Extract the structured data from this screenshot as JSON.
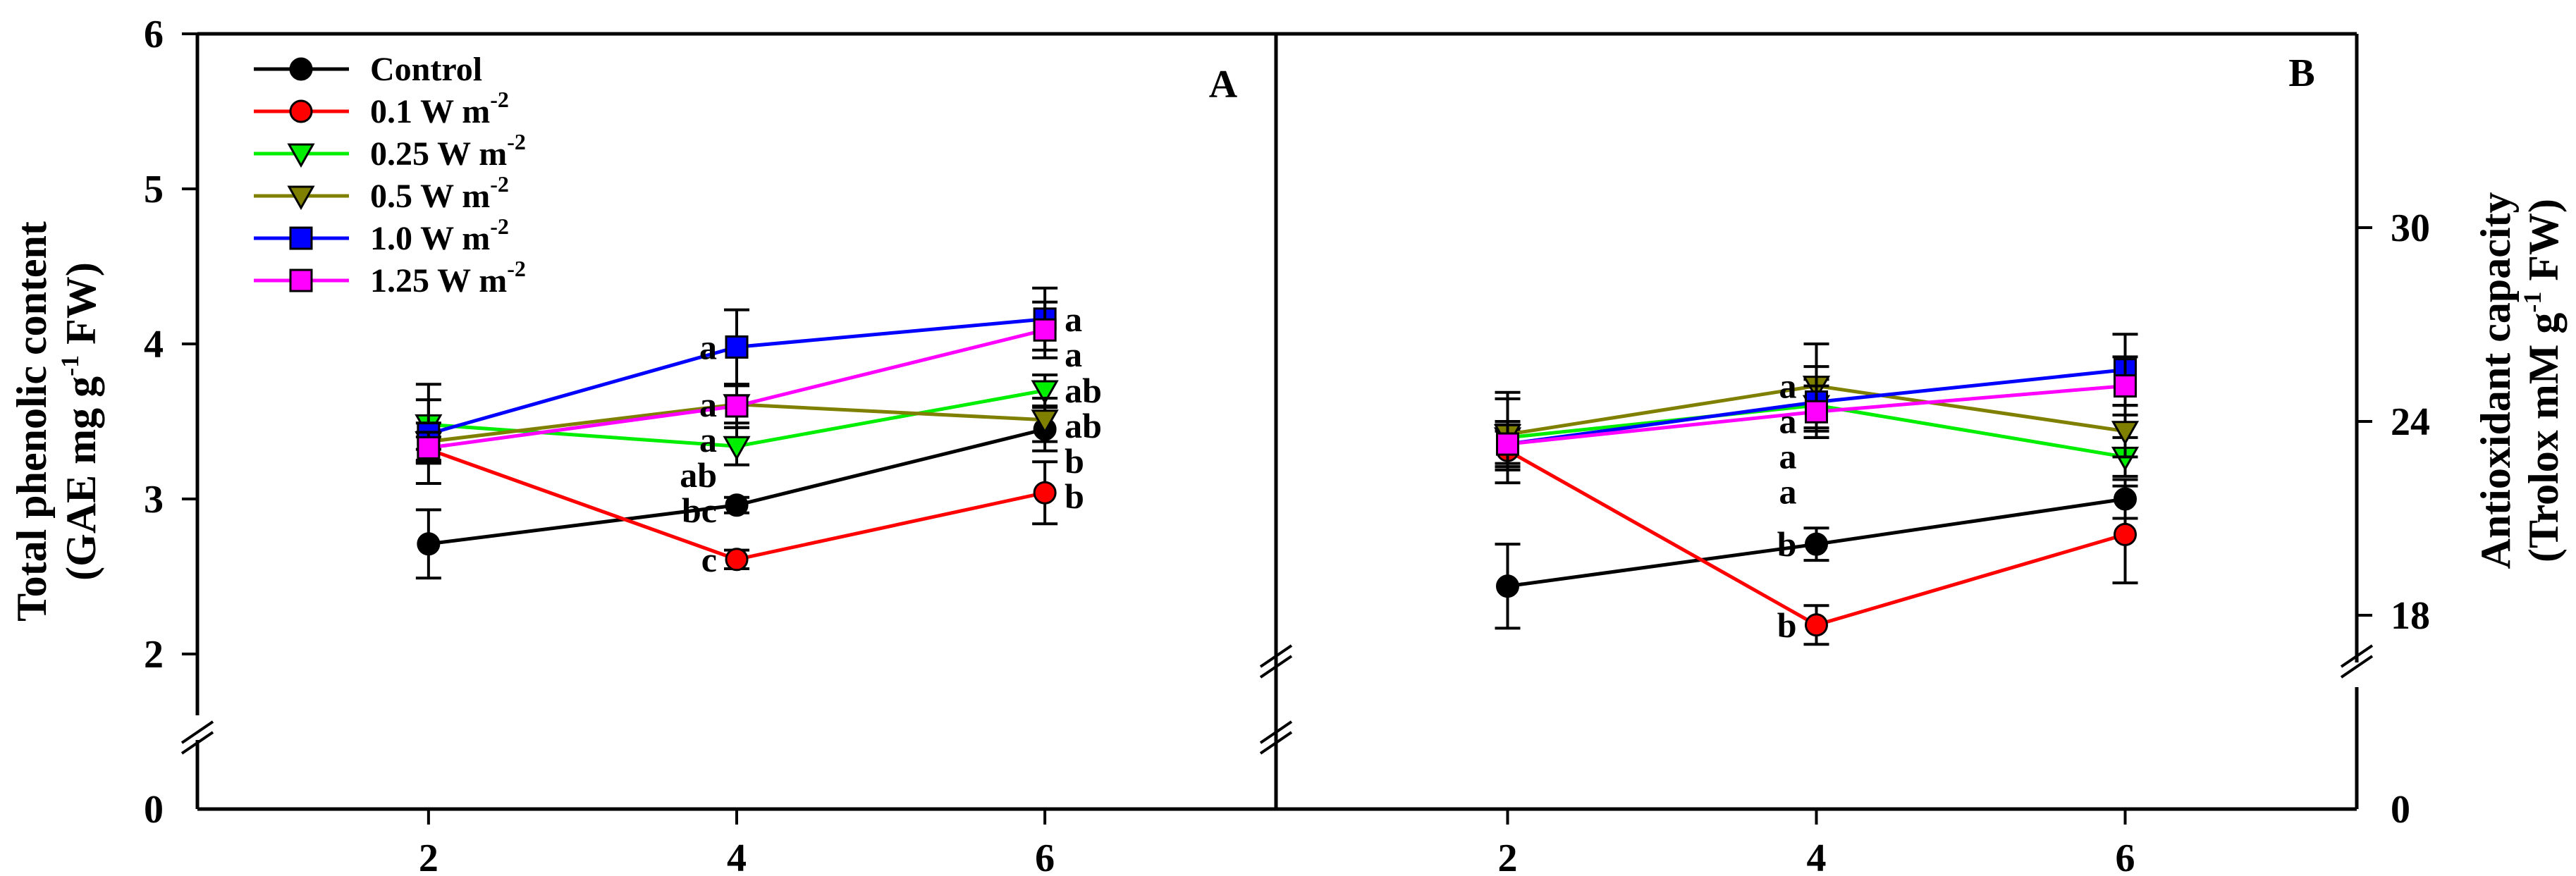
{
  "figure": {
    "legend": [
      "Control",
      "0.1 W m",
      "0.25 W m",
      "0.5 W m",
      "1.0 W m",
      "1.25 W m"
    ],
    "legend_exponent": "-2"
  },
  "chart_data": [
    {
      "type": "line",
      "panel_label": "A",
      "ylabel_line1": "Total phenolic content",
      "ylabel_line2": "(GAE mg g",
      "ylabel_exponent": "-1",
      "ylabel_suffix": " FW)",
      "xlabel": "",
      "x": [
        2,
        4,
        6
      ],
      "xlim": [
        0.5,
        7.5
      ],
      "ylim": [
        1,
        6
      ],
      "yticks": [
        0,
        2,
        3,
        4,
        5,
        6
      ],
      "axis_break": true,
      "series": [
        {
          "name": "Control",
          "color": "#000000",
          "marker": "circle",
          "y": [
            2.71,
            2.96,
            3.45
          ],
          "err": [
            0.22,
            0.05,
            0.14
          ],
          "labels": [
            "",
            "bc",
            "b"
          ]
        },
        {
          "name": "0.1 W m-2",
          "color": "#ff0000",
          "marker": "circle",
          "y": [
            3.32,
            2.61,
            3.04
          ],
          "err": [
            0.08,
            0.06,
            0.2
          ],
          "labels": [
            "",
            "c",
            "b"
          ]
        },
        {
          "name": "0.25 W m-2",
          "color": "#00ee00",
          "marker": "triangle-down",
          "y": [
            3.48,
            3.34,
            3.7
          ],
          "err": [
            0.16,
            0.12,
            0.1
          ],
          "labels": [
            "",
            "ab",
            "ab"
          ]
        },
        {
          "name": "0.5 W m-2",
          "color": "#808000",
          "marker": "triangle-down",
          "y": [
            3.37,
            3.61,
            3.51
          ],
          "err": [
            0.12,
            0.12,
            0.14
          ],
          "labels": [
            "",
            "a",
            "ab"
          ]
        },
        {
          "name": "1.0 W m-2",
          "color": "#0000ff",
          "marker": "square",
          "y": [
            3.42,
            3.98,
            4.16
          ],
          "err": [
            0.32,
            0.24,
            0.2
          ],
          "labels": [
            "",
            "a",
            "a"
          ]
        },
        {
          "name": "1.25 W m-2",
          "color": "#ff00ff",
          "marker": "square",
          "y": [
            3.33,
            3.6,
            4.09
          ],
          "err": [
            0.1,
            0.14,
            0.18
          ],
          "labels": [
            "",
            "a",
            "a"
          ]
        }
      ]
    },
    {
      "type": "line",
      "panel_label": "B",
      "ylabel_line1": "Antioxidant capacity",
      "ylabel_line2": "(Trolox mM g",
      "ylabel_exponent": "-1",
      "ylabel_suffix": " FW)",
      "xlabel": "",
      "x": [
        2,
        4,
        6
      ],
      "xlim": [
        0.5,
        7.5
      ],
      "ylim": [
        12,
        36
      ],
      "yticks": [
        0,
        18,
        24,
        30
      ],
      "axis_break": true,
      "series": [
        {
          "name": "Control",
          "color": "#000000",
          "marker": "circle",
          "y": [
            18.9,
            20.2,
            21.6
          ],
          "err": [
            1.3,
            0.5,
            0.6
          ],
          "labels": [
            "",
            "b",
            ""
          ]
        },
        {
          "name": "0.1 W m-2",
          "color": "#ff0000",
          "marker": "circle",
          "y": [
            23.1,
            17.7,
            20.5
          ],
          "err": [
            0.6,
            0.6,
            1.5
          ],
          "labels": [
            "",
            "b",
            ""
          ]
        },
        {
          "name": "0.25 W m-2",
          "color": "#00ee00",
          "marker": "triangle-down",
          "y": [
            23.5,
            24.5,
            22.9
          ],
          "err": [
            1.4,
            0.8,
            0.6
          ],
          "labels": [
            "",
            "a",
            ""
          ]
        },
        {
          "name": "0.5 W m-2",
          "color": "#808000",
          "marker": "triangle-down",
          "y": [
            23.6,
            25.1,
            23.7
          ],
          "err": [
            1.1,
            1.3,
            0.8
          ],
          "labels": [
            "",
            "a",
            ""
          ]
        },
        {
          "name": "1.0 W m-2",
          "color": "#0000ff",
          "marker": "square",
          "y": [
            23.3,
            24.6,
            25.6
          ],
          "err": [
            0.7,
            1.1,
            1.1
          ],
          "labels": [
            "",
            "a",
            ""
          ]
        },
        {
          "name": "1.25 W m-2",
          "color": "#ff00ff",
          "marker": "square",
          "y": [
            23.3,
            24.3,
            25.1
          ],
          "err": [
            0.6,
            0.8,
            0.9
          ],
          "labels": [
            "",
            "a",
            ""
          ]
        }
      ]
    }
  ]
}
